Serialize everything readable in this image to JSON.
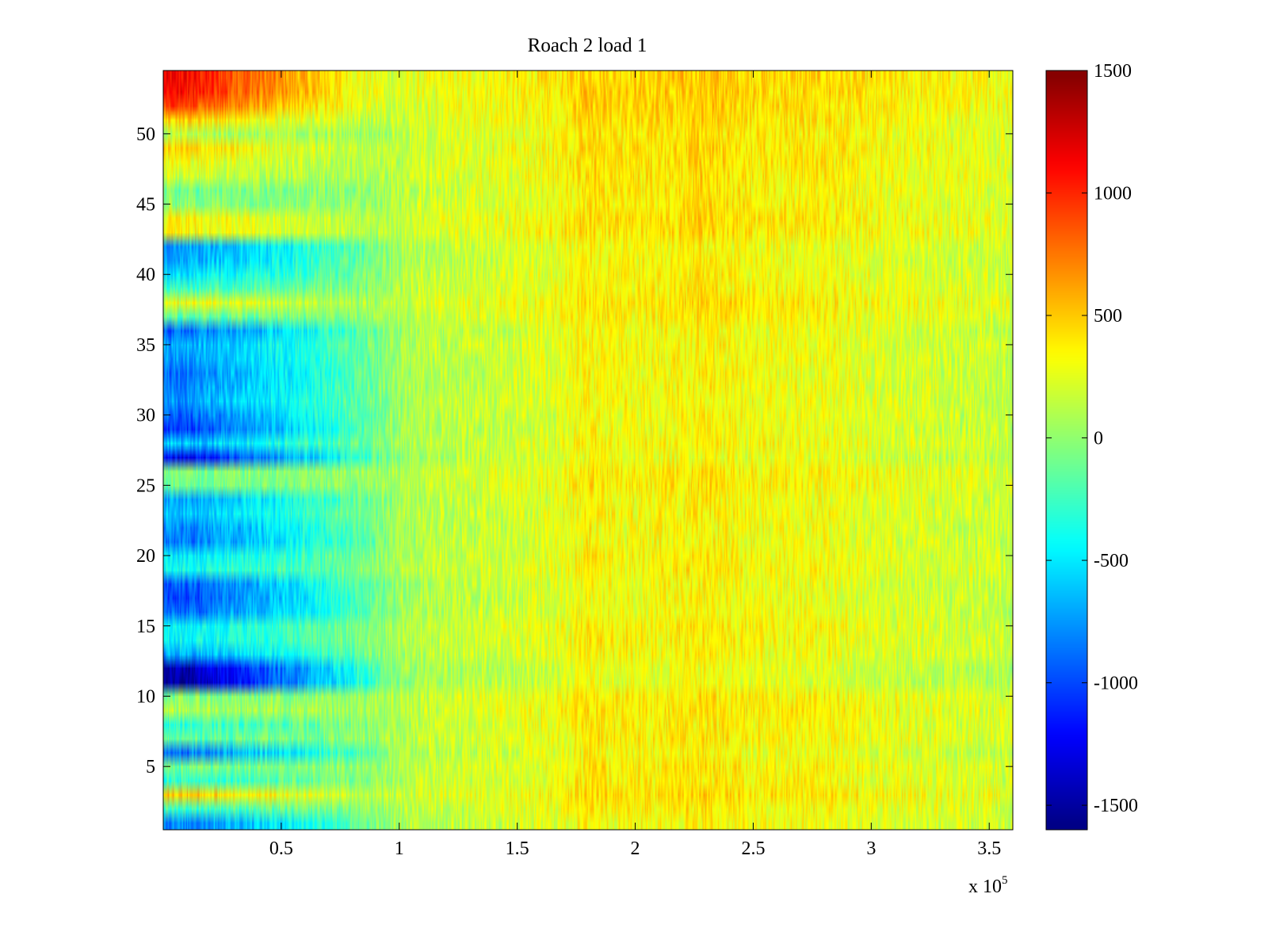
{
  "chart_data": {
    "type": "heatmap",
    "title": "Roach 2 load 1",
    "xlabel": "",
    "ylabel": "",
    "xlim": [
      0,
      360000
    ],
    "ylim": [
      0.5,
      54.5
    ],
    "x_ticks": [
      50000,
      100000,
      150000,
      200000,
      250000,
      300000,
      350000
    ],
    "x_tick_labels": [
      "0.5",
      "1",
      "1.5",
      "2",
      "2.5",
      "3",
      "3.5"
    ],
    "x_exponent": {
      "base": "x 10",
      "power": "5"
    },
    "y_ticks": [
      5,
      10,
      15,
      20,
      25,
      30,
      35,
      40,
      45,
      50
    ],
    "y_tick_labels": [
      "5",
      "10",
      "15",
      "20",
      "25",
      "30",
      "35",
      "40",
      "45",
      "50"
    ],
    "rows": 54,
    "colorbar": {
      "colormap": "jet",
      "range": [
        -1600,
        1500
      ],
      "ticks": [
        -1500,
        -1000,
        -500,
        0,
        500,
        1000,
        1500
      ],
      "tick_labels": [
        "-1500",
        "-1000",
        "-500",
        "0",
        "500",
        "1000",
        "1500"
      ]
    },
    "row_baseline_values": [
      -800,
      -250,
      500,
      -300,
      -100,
      -850,
      -150,
      -300,
      100,
      -50,
      -1500,
      -1450,
      -700,
      -450,
      -450,
      -900,
      -1000,
      -950,
      -400,
      -500,
      -850,
      -800,
      -600,
      -700,
      -100,
      -50,
      -1250,
      -600,
      -1050,
      -900,
      -750,
      -800,
      -850,
      -750,
      -700,
      -900,
      -150,
      300,
      -250,
      -500,
      -700,
      -750,
      350,
      350,
      0,
      -100,
      200,
      300,
      450,
      100,
      450,
      900,
      1100,
      1100
    ],
    "trend_by_x": [
      [
        0,
        0
      ],
      [
        50000,
        0
      ],
      [
        90000,
        60
      ],
      [
        110000,
        180
      ],
      [
        150000,
        260
      ],
      [
        170000,
        320
      ],
      [
        180000,
        420
      ],
      [
        190000,
        380
      ],
      [
        200000,
        370
      ],
      [
        220000,
        400
      ],
      [
        230000,
        430
      ],
      [
        250000,
        360
      ],
      [
        280000,
        360
      ],
      [
        300000,
        300
      ],
      [
        360000,
        220
      ]
    ],
    "convergence_x": 100000,
    "noise_amplitude": 180,
    "grid": false,
    "legend": "none"
  }
}
